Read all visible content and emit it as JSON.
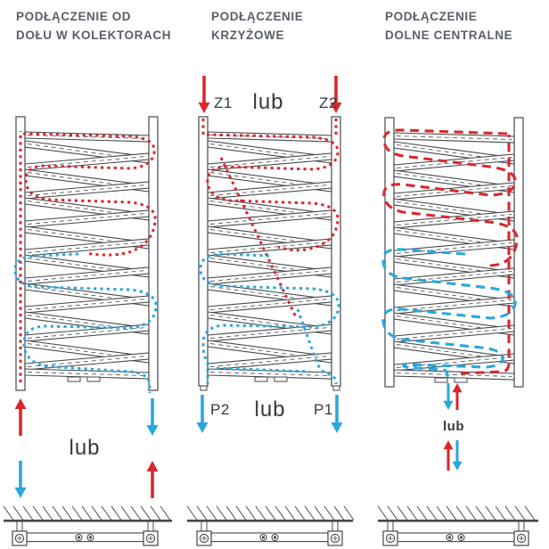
{
  "colors": {
    "hot": "#d7282e",
    "cold": "#2aa7de",
    "line": "#45484c",
    "centerline": "#55585c",
    "title": "#5a5f66",
    "label": "#36393d"
  },
  "diagrams": [
    {
      "title_line1": "PODŁĄCZENIE OD",
      "title_line2": "DOŁU W KOLEKTORACH",
      "or_label": "lub",
      "flow_in": "hot-bottom-left",
      "flow_out": "cold-bottom-right"
    },
    {
      "title_line1": "PODŁĄCZENIE",
      "title_line2": "KRZYŻOWE",
      "labels": {
        "z1": "Z1",
        "z2": "Z2",
        "p1": "P1",
        "p2": "P2",
        "or_top": "lub",
        "or_bottom": "lub"
      }
    },
    {
      "title_line1": "PODŁĄCZENIE",
      "title_line2": "DOLNE CENTRALNE",
      "or_label": "lub",
      "flow_in": "hot-bottom-center",
      "flow_out": "cold-bottom-center"
    }
  ]
}
